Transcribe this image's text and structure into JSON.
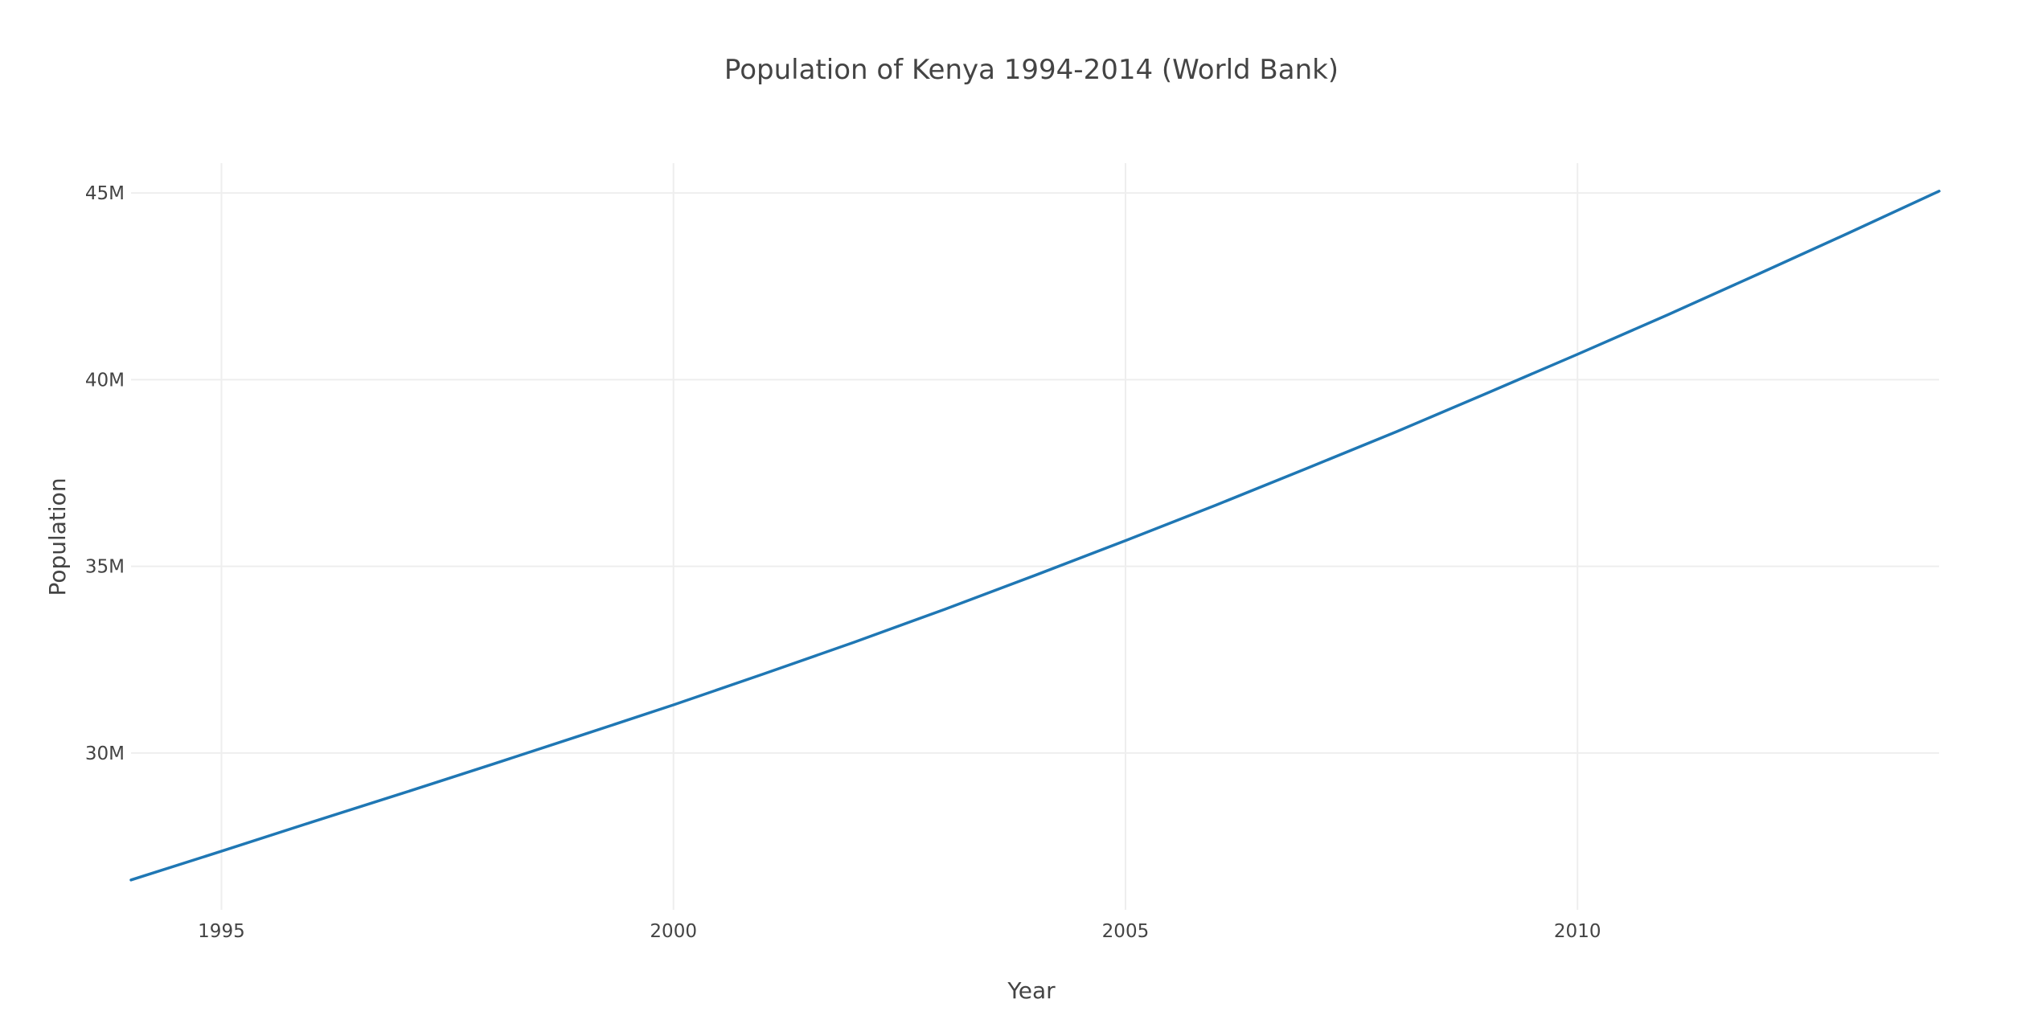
{
  "chart_data": {
    "type": "line",
    "title": "Population of Kenya 1994-2014 (World Bank)",
    "xlabel": "Year",
    "ylabel": "Population",
    "xlim": [
      1994,
      2014
    ],
    "ylim": [
      25800000,
      45800000
    ],
    "xticks": [
      1995,
      2000,
      2005,
      2010
    ],
    "xtick_labels": [
      "1995",
      "2000",
      "2005",
      "2010"
    ],
    "yticks": [
      30000000,
      35000000,
      40000000,
      45000000
    ],
    "ytick_labels": [
      "30M",
      "35M",
      "40M",
      "45M"
    ],
    "grid": true,
    "series": [
      {
        "color": "#1f77b4",
        "x": [
          1994,
          1995,
          1996,
          1997,
          1998,
          1999,
          2000,
          2001,
          2002,
          2003,
          2004,
          2005,
          2006,
          2007,
          2008,
          2009,
          2010,
          2011,
          2012,
          2013,
          2014
        ],
        "y": [
          26600000,
          27370000,
          28150000,
          28920000,
          29700000,
          30490000,
          31290000,
          32120000,
          32970000,
          33850000,
          34760000,
          35690000,
          36640000,
          37620000,
          38610000,
          39640000,
          40680000,
          41740000,
          42830000,
          43930000,
          45050000
        ]
      }
    ]
  }
}
